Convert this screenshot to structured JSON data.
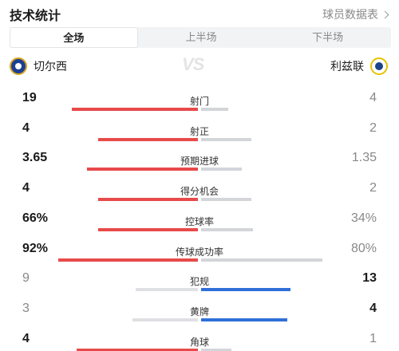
{
  "header": {
    "title": "技术统计",
    "link": "球员数据表"
  },
  "tabs": [
    {
      "label": "全场",
      "active": true
    },
    {
      "label": "上半场",
      "active": false
    },
    {
      "label": "下半场",
      "active": false
    }
  ],
  "teams": {
    "home": {
      "name": "切尔西",
      "badge_icon": "chelsea-badge-icon"
    },
    "away": {
      "name": "利兹联",
      "badge_icon": "leeds-badge-icon"
    },
    "vs": "VS"
  },
  "colors": {
    "home_bar": "#e84a4a",
    "away_bar": "#2f6fd8",
    "track": "#dfe0e3",
    "losing_bar": "#dfe0e3"
  },
  "stats": [
    {
      "label": "射门",
      "home": "19",
      "away": "4",
      "home_frac": 0.83,
      "away_frac": 0.18,
      "leader": "home"
    },
    {
      "label": "射正",
      "home": "4",
      "away": "2",
      "home_frac": 0.66,
      "away_frac": 0.33,
      "leader": "home"
    },
    {
      "label": "预期进球",
      "home": "3.65",
      "away": "1.35",
      "home_frac": 0.73,
      "away_frac": 0.27,
      "leader": "home"
    },
    {
      "label": "得分机会",
      "home": "4",
      "away": "2",
      "home_frac": 0.66,
      "away_frac": 0.33,
      "leader": "home"
    },
    {
      "label": "控球率",
      "home": "66%",
      "away": "34%",
      "home_frac": 0.66,
      "away_frac": 0.34,
      "leader": "home"
    },
    {
      "label": "传球成功率",
      "home": "92%",
      "away": "80%",
      "home_frac": 0.92,
      "away_frac": 0.8,
      "leader": "home"
    },
    {
      "label": "犯规",
      "home": "9",
      "away": "13",
      "home_frac": 0.41,
      "away_frac": 0.59,
      "leader": "away"
    },
    {
      "label": "黄牌",
      "home": "3",
      "away": "4",
      "home_frac": 0.43,
      "away_frac": 0.57,
      "leader": "away"
    },
    {
      "label": "角球",
      "home": "4",
      "away": "1",
      "home_frac": 0.8,
      "away_frac": 0.2,
      "leader": "home"
    }
  ]
}
